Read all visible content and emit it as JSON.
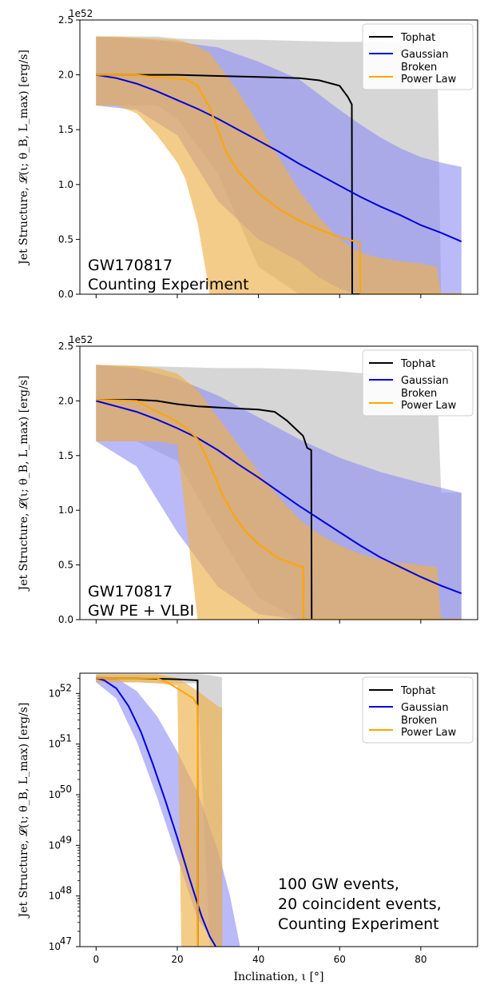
{
  "chart_data": [
    {
      "type": "line",
      "offset_text": "1e52",
      "ylabel": "Jet Structure, 𝓛(ι; θ_B, L_max) [erg/s]",
      "ylim": [
        0,
        2.5
      ],
      "xlim": [
        -4,
        94
      ],
      "yscale": "linear",
      "yticks": [
        0.0,
        0.5,
        1.0,
        1.5,
        2.0,
        2.5
      ],
      "ytick_labels": [
        "0.0",
        "0.5",
        "1.0",
        "1.5",
        "2.0",
        "2.5"
      ],
      "xticks": [
        0,
        20,
        40,
        60,
        80
      ],
      "annotation": [
        "GW170817",
        "Counting Experiment"
      ],
      "legend": {
        "placement": "top-right",
        "labels": [
          "Tophat",
          "Gaussian",
          "Broken Power Law"
        ]
      },
      "colors": {
        "Tophat": "#000000",
        "Gaussian": "#0000dd",
        "Broken Power Law": "#ffa500",
        "tophat_band": "#c8c8c8",
        "gaussian_band": "#8c8cf5",
        "bpl_band": "#eeb04a"
      },
      "series": [
        {
          "name": "Tophat",
          "x": [
            0,
            10,
            20,
            30,
            40,
            50,
            55,
            60,
            62,
            63,
            63.1,
            65,
            90
          ],
          "y": [
            2.0,
            2.0,
            2.0,
            1.99,
            1.98,
            1.97,
            1.95,
            1.9,
            1.8,
            1.73,
            0,
            0,
            0
          ]
        },
        {
          "name": "Gaussian",
          "x": [
            0,
            5,
            10,
            15,
            20,
            25,
            30,
            35,
            40,
            45,
            50,
            55,
            60,
            65,
            70,
            75,
            80,
            85,
            90
          ],
          "y": [
            2.0,
            1.97,
            1.92,
            1.85,
            1.77,
            1.69,
            1.6,
            1.5,
            1.4,
            1.3,
            1.19,
            1.09,
            0.99,
            0.89,
            0.8,
            0.72,
            0.63,
            0.56,
            0.48
          ]
        },
        {
          "name": "Broken Power Law",
          "x": [
            0,
            10,
            14,
            18,
            22,
            25,
            28,
            30,
            32,
            35,
            40,
            45,
            50,
            55,
            60,
            65,
            65.1,
            66,
            90
          ],
          "y": [
            2.0,
            2.0,
            1.98,
            1.97,
            1.96,
            1.9,
            1.7,
            1.5,
            1.3,
            1.12,
            0.92,
            0.78,
            0.67,
            0.59,
            0.52,
            0.47,
            0,
            0,
            0
          ]
        }
      ],
      "bands": [
        {
          "series": "Tophat",
          "x": [
            0,
            15,
            20,
            30,
            40,
            50,
            60,
            70,
            80,
            84,
            85,
            90
          ],
          "upper": [
            2.35,
            2.35,
            2.33,
            2.32,
            2.32,
            2.31,
            2.3,
            2.3,
            2.29,
            2.28,
            0,
            0
          ],
          "lower": [
            1.72,
            1.72,
            1.6,
            1.1,
            0.25,
            0,
            0,
            0,
            0,
            0,
            0,
            0
          ]
        },
        {
          "series": "Gaussian",
          "x": [
            0,
            10,
            20,
            30,
            40,
            50,
            55,
            60,
            65,
            70,
            75,
            80,
            85,
            90
          ],
          "upper": [
            2.35,
            2.33,
            2.3,
            2.25,
            2.12,
            1.96,
            1.82,
            1.68,
            1.55,
            1.43,
            1.33,
            1.25,
            1.2,
            1.16
          ],
          "lower": [
            1.72,
            1.68,
            1.45,
            0.85,
            0.5,
            0.3,
            0.15,
            0.05,
            0,
            0,
            0,
            0,
            0,
            0
          ]
        },
        {
          "series": "Broken Power Law",
          "x": [
            0,
            5,
            10,
            15,
            20,
            22,
            25,
            28,
            30,
            35,
            40,
            45,
            50,
            55,
            60,
            65,
            70,
            75,
            80,
            84,
            85,
            90
          ],
          "upper": [
            2.35,
            2.35,
            2.34,
            2.33,
            2.32,
            2.3,
            2.26,
            2.2,
            2.1,
            1.85,
            1.55,
            1.25,
            0.95,
            0.7,
            0.5,
            0.38,
            0.33,
            0.3,
            0.28,
            0.25,
            0,
            0
          ],
          "lower": [
            1.72,
            1.72,
            1.65,
            1.45,
            1.2,
            1.05,
            0.65,
            0,
            0,
            0,
            0,
            0,
            0,
            0,
            0,
            0,
            0,
            0,
            0,
            0,
            0,
            0
          ]
        }
      ]
    },
    {
      "type": "line",
      "offset_text": "1e52",
      "ylabel": "Jet Structure, 𝓛(ι; θ_B, L_max) [erg/s]",
      "ylim": [
        0,
        2.5
      ],
      "xlim": [
        -4,
        94
      ],
      "yscale": "linear",
      "yticks": [
        0.0,
        0.5,
        1.0,
        1.5,
        2.0,
        2.5
      ],
      "ytick_labels": [
        "0.0",
        "0.5",
        "1.0",
        "1.5",
        "2.0",
        "2.5"
      ],
      "xticks": [
        0,
        20,
        40,
        60,
        80
      ],
      "annotation": [
        "GW170817",
        "GW PE + VLBI"
      ],
      "legend": {
        "placement": "top-right",
        "labels": [
          "Tophat",
          "Gaussian",
          "Broken Power Law"
        ]
      },
      "series": [
        {
          "name": "Tophat",
          "x": [
            0,
            10,
            15,
            20,
            25,
            30,
            35,
            40,
            44,
            47,
            49,
            51,
            52,
            53,
            53.1,
            60,
            90
          ],
          "y": [
            2.01,
            2.01,
            2.0,
            1.97,
            1.95,
            1.94,
            1.93,
            1.92,
            1.9,
            1.82,
            1.75,
            1.68,
            1.57,
            1.55,
            0,
            0,
            0
          ]
        },
        {
          "name": "Gaussian",
          "x": [
            0,
            5,
            10,
            15,
            20,
            25,
            30,
            35,
            40,
            45,
            50,
            55,
            60,
            65,
            70,
            75,
            80,
            85,
            90
          ],
          "y": [
            2.0,
            1.95,
            1.9,
            1.83,
            1.75,
            1.66,
            1.55,
            1.42,
            1.3,
            1.17,
            1.04,
            0.92,
            0.8,
            0.68,
            0.57,
            0.48,
            0.39,
            0.31,
            0.24
          ]
        },
        {
          "name": "Broken Power Law",
          "x": [
            0,
            10,
            14,
            18,
            22,
            25,
            28,
            31,
            34,
            37,
            40,
            45,
            50,
            51,
            51.1,
            54,
            90
          ],
          "y": [
            2.01,
            2.0,
            1.92,
            1.85,
            1.76,
            1.65,
            1.42,
            1.15,
            0.95,
            0.8,
            0.69,
            0.56,
            0.49,
            0.48,
            0,
            0,
            0
          ]
        }
      ],
      "bands": [
        {
          "series": "Tophat",
          "x": [
            0,
            10,
            20,
            30,
            40,
            50,
            60,
            70,
            80,
            84,
            85,
            90
          ],
          "upper": [
            2.33,
            2.32,
            2.31,
            2.3,
            2.3,
            2.29,
            2.27,
            2.24,
            2.2,
            2.18,
            1.16,
            1.16
          ],
          "lower": [
            1.63,
            1.63,
            1.45,
            0.8,
            0.2,
            0,
            0,
            0,
            0,
            0,
            0,
            0
          ]
        },
        {
          "series": "Gaussian",
          "x": [
            0,
            10,
            20,
            30,
            40,
            50,
            60,
            70,
            80,
            90
          ],
          "upper": [
            2.33,
            2.3,
            2.2,
            2.05,
            1.85,
            1.65,
            1.48,
            1.35,
            1.25,
            1.16
          ],
          "lower": [
            1.63,
            1.4,
            0.8,
            0.3,
            0.05,
            0,
            0,
            0,
            0,
            0
          ]
        },
        {
          "series": "Broken Power Law",
          "x": [
            0,
            10,
            15,
            20,
            25,
            30,
            35,
            40,
            45,
            50,
            55,
            60,
            65,
            70,
            75,
            80,
            84,
            85,
            90
          ],
          "upper": [
            2.33,
            2.32,
            2.3,
            2.25,
            2.1,
            1.85,
            1.6,
            1.35,
            1.12,
            0.92,
            0.78,
            0.68,
            0.6,
            0.55,
            0.52,
            0.5,
            0.48,
            0,
            0
          ],
          "lower": [
            1.63,
            1.63,
            1.63,
            1.6,
            0,
            0,
            0,
            0,
            0,
            0,
            0,
            0,
            0,
            0,
            0,
            0,
            0,
            0,
            0
          ]
        }
      ]
    },
    {
      "type": "line",
      "yscale": "log",
      "ylabel": "Jet Structure, 𝓛(ι; θ_B, L_max) [erg/s]",
      "xlabel": "Inclination, ι [°]",
      "ylim_log10": [
        47,
        52.4
      ],
      "xlim": [
        -4,
        94
      ],
      "yticks_log10": [
        47,
        48,
        49,
        50,
        51,
        52
      ],
      "ytick_exponents": [
        "47",
        "48",
        "49",
        "50",
        "51",
        "52"
      ],
      "xticks": [
        0,
        20,
        40,
        60,
        80
      ],
      "xtick_labels": [
        "0",
        "20",
        "40",
        "60",
        "80"
      ],
      "annotation": [
        "100 GW events,",
        "20 coincident events,",
        "Counting Experiment"
      ],
      "legend": {
        "placement": "top-right",
        "labels": [
          "Tophat",
          "Gaussian",
          "Broken Power Law"
        ]
      },
      "series": [
        {
          "name": "Tophat",
          "x": [
            0,
            10,
            20,
            25,
            25.1,
            25.2
          ],
          "y_log10": [
            52.3,
            52.3,
            52.28,
            52.26,
            47.0,
            47.0
          ]
        },
        {
          "name": "Gaussian",
          "x": [
            0,
            2,
            5,
            8,
            11,
            14,
            17,
            20,
            23,
            26,
            28,
            29.5
          ],
          "y_log10": [
            52.3,
            52.26,
            52.1,
            51.75,
            51.25,
            50.6,
            49.9,
            49.15,
            48.35,
            47.6,
            47.2,
            47.0
          ]
        },
        {
          "name": "Broken Power Law",
          "x": [
            0,
            5,
            10,
            15,
            18,
            21,
            24,
            25,
            25.1,
            25.2
          ],
          "y_log10": [
            52.3,
            52.3,
            52.3,
            52.3,
            52.2,
            52.05,
            51.9,
            51.75,
            47.0,
            47.0
          ]
        }
      ],
      "bands": [
        {
          "series": "Tophat",
          "x": [
            0,
            10,
            20,
            25,
            28,
            31,
            31.1
          ],
          "upper": [
            52.38,
            52.38,
            52.38,
            52.38,
            52.36,
            52.32,
            47.0
          ],
          "lower": [
            52.22,
            52.22,
            52.2,
            52.2,
            47.0,
            47.0,
            47.0
          ]
        },
        {
          "series": "Gaussian",
          "x": [
            0,
            5,
            10,
            15,
            20,
            25,
            30,
            33,
            35.5
          ],
          "upper": [
            52.35,
            52.3,
            52.05,
            51.55,
            50.85,
            50.05,
            48.9,
            48.0,
            47.0
          ],
          "lower": [
            52.22,
            51.9,
            51.05,
            49.95,
            48.75,
            47.55,
            47.0,
            47.0,
            47.0
          ]
        },
        {
          "series": "Broken Power Law",
          "x": [
            0,
            10,
            15,
            20,
            21,
            25,
            30,
            31,
            31.1
          ],
          "upper": [
            52.38,
            52.38,
            52.38,
            52.3,
            52.26,
            52.05,
            51.75,
            51.72,
            47.0
          ],
          "lower": [
            52.22,
            52.22,
            52.2,
            52.15,
            47.0,
            47.0,
            47.0,
            47.0,
            47.0
          ]
        }
      ]
    }
  ]
}
